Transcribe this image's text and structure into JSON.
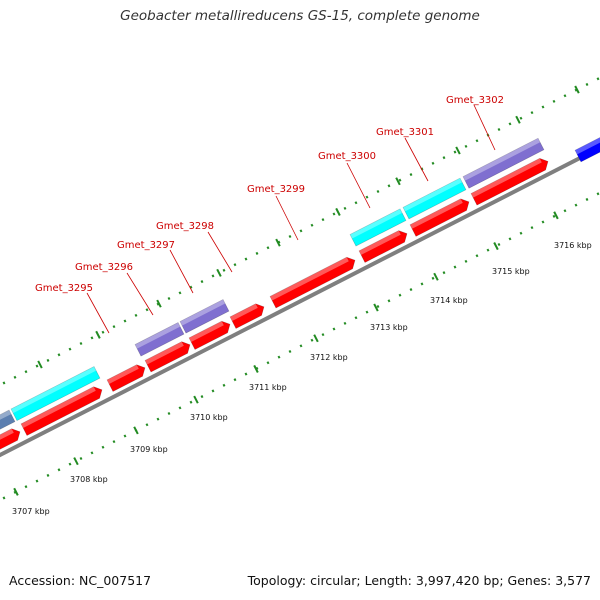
{
  "title": "Geobacter metallireducens GS-15, complete genome",
  "footer": {
    "accession": "Accession: NC_007517",
    "summary": "Topology: circular; Length: 3,997,420 bp; Genes: 3,577"
  },
  "colors": {
    "backbone": "#7f7f7f",
    "forward_cds": "#ff0000",
    "reverse_cds": "#7f6fd0",
    "rna": "#00ffff",
    "other_feature": "#0000ff",
    "ticks": "#228b22",
    "gene_label": "#cc0000"
  },
  "scale_labels": [
    "3707 kbp",
    "3708 kbp",
    "3709 kbp",
    "3710 kbp",
    "3711 kbp",
    "3712 kbp",
    "3713 kbp",
    "3714 kbp",
    "3715 kbp",
    "3716 kbp"
  ],
  "gene_labels": [
    "Gmet_3295",
    "Gmet_3296",
    "Gmet_3297",
    "Gmet_3298",
    "Gmet_3299",
    "Gmet_3300",
    "Gmet_3301",
    "Gmet_3302"
  ]
}
